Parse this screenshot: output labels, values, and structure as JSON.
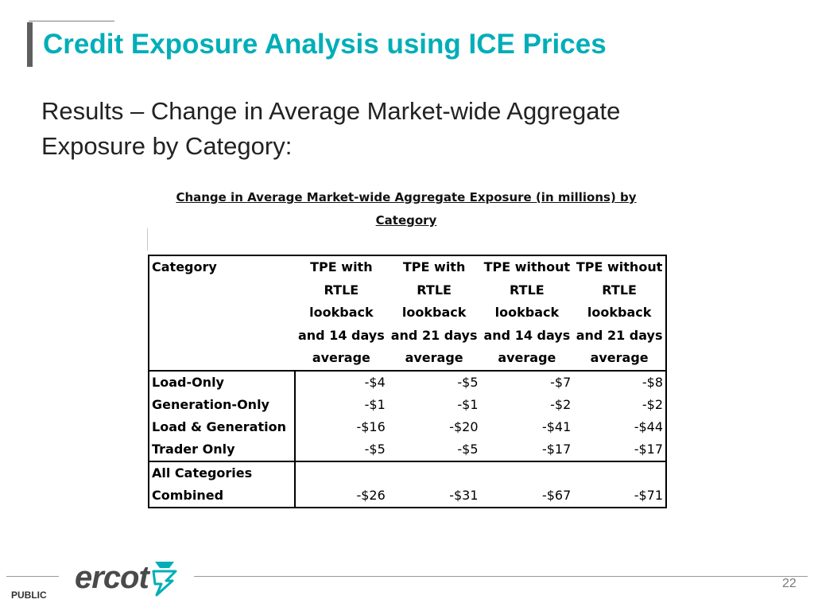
{
  "slide": {
    "title": "Credit Exposure Analysis using ICE Prices",
    "subtitle": "Results – Change in Average Market-wide Aggregate Exposure by Category:"
  },
  "table": {
    "caption": "Change in Average  Market-wide Aggregate Exposure (in millions) by Category",
    "headers": [
      "Category",
      "TPE with RTLE lookback and 14 days average",
      "TPE with RTLE lookback and 21 days average",
      "TPE without RTLE lookback and 14 days average",
      "TPE without RTLE lookback and 21 days average"
    ],
    "rows": [
      {
        "category": "Load-Only",
        "values": [
          "-$4",
          "-$5",
          "-$7",
          "-$8"
        ]
      },
      {
        "category": "Generation-Only",
        "values": [
          "-$1",
          "-$1",
          "-$2",
          "-$2"
        ]
      },
      {
        "category": "Load & Generation",
        "values": [
          "-$16",
          "-$20",
          "-$41",
          "-$44"
        ]
      },
      {
        "category": "Trader Only",
        "values": [
          "-$5",
          "-$5",
          "-$17",
          "-$17"
        ]
      },
      {
        "category": "All Categories Combined",
        "values": [
          "-$26",
          "-$31",
          "-$67",
          "-$71"
        ]
      }
    ]
  },
  "footer": {
    "logo_text": "ercot",
    "logo_icon": "ercot-logo-icon",
    "classification": "PUBLIC",
    "page_number": "22",
    "accent_color": "#00aeb8"
  }
}
